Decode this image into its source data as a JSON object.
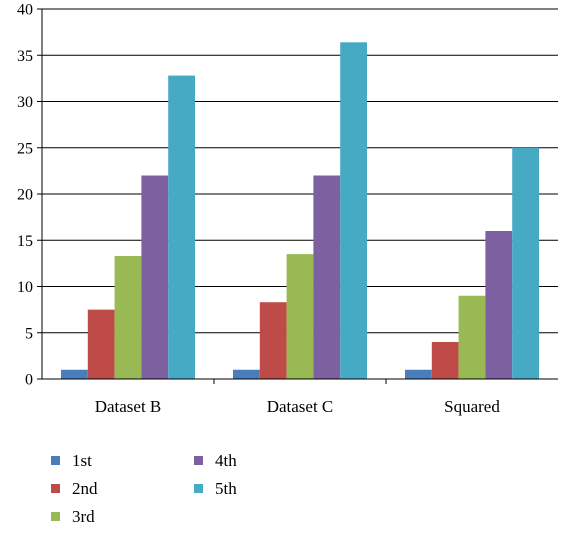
{
  "chart_data": {
    "type": "bar",
    "categories": [
      "Dataset B",
      "Dataset C",
      "Squared"
    ],
    "series": [
      {
        "name": "1st",
        "values": [
          1,
          1,
          1
        ],
        "color": "#4a7ebb"
      },
      {
        "name": "2nd",
        "values": [
          7.5,
          8.3,
          4
        ],
        "color": "#be4b48"
      },
      {
        "name": "3rd",
        "values": [
          13.3,
          13.5,
          9
        ],
        "color": "#98b954"
      },
      {
        "name": "4th",
        "values": [
          22,
          22,
          16
        ],
        "color": "#7d60a0"
      },
      {
        "name": "5th",
        "values": [
          32.8,
          36.4,
          25
        ],
        "color": "#46aac5"
      }
    ],
    "ylim": [
      0,
      40
    ],
    "yticks": [
      "0",
      "5",
      "10",
      "15",
      "20",
      "25",
      "30",
      "35",
      "40"
    ],
    "grid": true,
    "legend_position": "bottom-left",
    "title": "",
    "xlabel": "",
    "ylabel": ""
  }
}
